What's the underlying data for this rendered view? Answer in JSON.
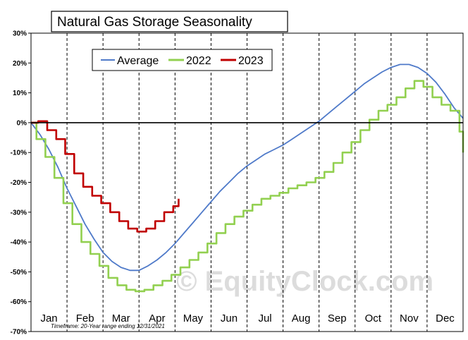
{
  "chart_data": {
    "type": "line",
    "title": "Natural Gas Storage Seasonality",
    "footnote": "Timeframe: 20-Year range ending 12/31/2021",
    "watermark": "© EquityClock.com",
    "months": [
      "Jan",
      "Feb",
      "Mar",
      "Apr",
      "May",
      "Jun",
      "Jul",
      "Aug",
      "Sep",
      "Oct",
      "Nov",
      "Dec"
    ],
    "ylim": [
      -70,
      30
    ],
    "yticks": [
      30,
      20,
      10,
      0,
      -10,
      -20,
      -30,
      -40,
      -50,
      -60,
      -70
    ],
    "ytick_labels": [
      "30%",
      "20%",
      "10%",
      "0%",
      "-10%",
      "-20%",
      "-30%",
      "-40%",
      "-50%",
      "-60%",
      "-70%"
    ],
    "xlabel": "",
    "ylabel": "",
    "grid": "vertical dashed at month boundaries",
    "legend": "top-left",
    "x_unit": "month (fractional, 0 = Jan 1)",
    "series": [
      {
        "name": "Average",
        "color": "#4f7ac9",
        "style": "smooth",
        "points": [
          [
            0.0,
            0.0
          ],
          [
            0.25,
            -4.0
          ],
          [
            0.5,
            -9.0
          ],
          [
            0.75,
            -15.0
          ],
          [
            1.0,
            -22.0
          ],
          [
            1.25,
            -28.0
          ],
          [
            1.5,
            -34.0
          ],
          [
            1.75,
            -39.0
          ],
          [
            2.0,
            -43.5
          ],
          [
            2.25,
            -46.5
          ],
          [
            2.5,
            -48.5
          ],
          [
            2.75,
            -49.5
          ],
          [
            3.0,
            -49.5
          ],
          [
            3.25,
            -48.0
          ],
          [
            3.5,
            -46.0
          ],
          [
            3.75,
            -43.5
          ],
          [
            4.0,
            -40.5
          ],
          [
            4.25,
            -37.0
          ],
          [
            4.5,
            -33.5
          ],
          [
            4.75,
            -30.0
          ],
          [
            5.0,
            -26.5
          ],
          [
            5.25,
            -23.0
          ],
          [
            5.5,
            -20.0
          ],
          [
            5.75,
            -17.0
          ],
          [
            6.0,
            -14.5
          ],
          [
            6.25,
            -12.5
          ],
          [
            6.5,
            -10.5
          ],
          [
            6.75,
            -9.0
          ],
          [
            7.0,
            -7.5
          ],
          [
            7.25,
            -5.5
          ],
          [
            7.5,
            -3.5
          ],
          [
            7.75,
            -1.5
          ],
          [
            8.0,
            0.5
          ],
          [
            8.25,
            3.0
          ],
          [
            8.5,
            5.5
          ],
          [
            8.75,
            8.0
          ],
          [
            9.0,
            10.5
          ],
          [
            9.25,
            13.0
          ],
          [
            9.5,
            15.0
          ],
          [
            9.75,
            17.0
          ],
          [
            10.0,
            18.5
          ],
          [
            10.25,
            19.5
          ],
          [
            10.5,
            19.5
          ],
          [
            10.75,
            18.5
          ],
          [
            11.0,
            16.5
          ],
          [
            11.25,
            13.5
          ],
          [
            11.5,
            9.5
          ],
          [
            11.75,
            5.0
          ],
          [
            12.0,
            1.5
          ]
        ]
      },
      {
        "name": "2022",
        "color": "#92d050",
        "style": "step",
        "points": [
          [
            0.0,
            0.0
          ],
          [
            0.15,
            -5.5
          ],
          [
            0.4,
            -11.5
          ],
          [
            0.65,
            -18.5
          ],
          [
            0.9,
            -27.0
          ],
          [
            1.15,
            -34.0
          ],
          [
            1.4,
            -40.0
          ],
          [
            1.65,
            -44.0
          ],
          [
            1.9,
            -48.0
          ],
          [
            2.15,
            -52.0
          ],
          [
            2.4,
            -54.5
          ],
          [
            2.65,
            -56.0
          ],
          [
            2.9,
            -56.5
          ],
          [
            3.15,
            -56.0
          ],
          [
            3.4,
            -54.5
          ],
          [
            3.65,
            -53.0
          ],
          [
            3.9,
            -51.0
          ],
          [
            4.15,
            -48.5
          ],
          [
            4.4,
            -46.0
          ],
          [
            4.65,
            -43.5
          ],
          [
            4.9,
            -40.5
          ],
          [
            5.15,
            -37.0
          ],
          [
            5.4,
            -34.0
          ],
          [
            5.65,
            -31.5
          ],
          [
            5.9,
            -29.5
          ],
          [
            6.15,
            -27.5
          ],
          [
            6.4,
            -25.5
          ],
          [
            6.65,
            -24.5
          ],
          [
            6.9,
            -23.5
          ],
          [
            7.15,
            -22.0
          ],
          [
            7.4,
            -21.0
          ],
          [
            7.65,
            -20.0
          ],
          [
            7.9,
            -18.5
          ],
          [
            8.15,
            -16.5
          ],
          [
            8.4,
            -13.5
          ],
          [
            8.65,
            -10.0
          ],
          [
            8.9,
            -6.5
          ],
          [
            9.15,
            -2.5
          ],
          [
            9.4,
            1.0
          ],
          [
            9.65,
            4.0
          ],
          [
            9.9,
            6.0
          ],
          [
            10.15,
            8.5
          ],
          [
            10.4,
            11.5
          ],
          [
            10.65,
            14.0
          ],
          [
            10.9,
            12.0
          ],
          [
            11.15,
            8.5
          ],
          [
            11.4,
            6.0
          ],
          [
            11.65,
            4.0
          ],
          [
            11.9,
            -3.0
          ],
          [
            12.0,
            -10.0
          ]
        ]
      },
      {
        "name": "2023",
        "color": "#c00000",
        "style": "step",
        "points": [
          [
            0.0,
            0.0
          ],
          [
            0.2,
            0.5
          ],
          [
            0.45,
            -2.5
          ],
          [
            0.7,
            -5.5
          ],
          [
            0.95,
            -10.5
          ],
          [
            1.2,
            -17.0
          ],
          [
            1.45,
            -21.5
          ],
          [
            1.7,
            -24.5
          ],
          [
            1.95,
            -27.0
          ],
          [
            2.2,
            -30.0
          ],
          [
            2.45,
            -33.0
          ],
          [
            2.7,
            -35.5
          ],
          [
            2.95,
            -36.5
          ],
          [
            3.2,
            -35.5
          ],
          [
            3.45,
            -33.0
          ],
          [
            3.7,
            -30.0
          ],
          [
            3.95,
            -28.0
          ],
          [
            4.1,
            -25.5
          ]
        ]
      }
    ]
  }
}
